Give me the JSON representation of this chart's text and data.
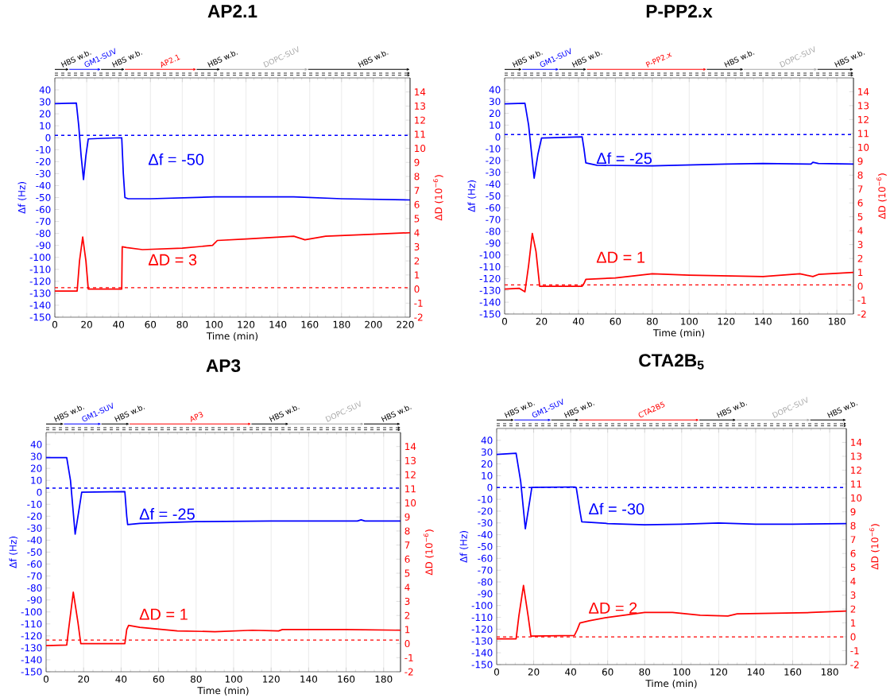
{
  "chart_data": [
    {
      "type": "line",
      "title": "AP2.1",
      "xlabel": "Time (min)",
      "ylabel": "Δf (Hz)",
      "y2label": "ΔD (10$^{−6}$)",
      "series": [
        {
          "color": "#0000ff",
          "x": [
            0,
            13.5,
            15,
            16.5,
            18,
            19.5,
            21,
            30,
            42,
            43,
            44,
            46,
            60,
            100,
            150,
            180,
            223
          ],
          "values": [
            28.5,
            29,
            10,
            -15,
            -35,
            -15,
            -1,
            -0.5,
            0,
            -30,
            -50,
            -51,
            -51,
            -49.5,
            -49.5,
            -51,
            -52
          ]
        },
        {
          "color": "#ff0000",
          "axis": "y2",
          "x": [
            0,
            14,
            15.5,
            17.5,
            19.5,
            21,
            42,
            42.3,
            45,
            55,
            80,
            99,
            102,
            120,
            150,
            157,
            170,
            200,
            223
          ],
          "values": [
            -0.15,
            -0.15,
            2,
            3.7,
            2,
            0,
            0,
            3,
            2.95,
            2.8,
            2.9,
            3.1,
            3.45,
            3.55,
            3.75,
            3.5,
            3.75,
            3.9,
            4.0
          ]
        }
      ],
      "xlim": [
        0,
        223
      ],
      "xticks": [
        0,
        20,
        40,
        60,
        80,
        100,
        120,
        140,
        160,
        180,
        200,
        220
      ],
      "ylim": [
        -150,
        50
      ],
      "yticks": [
        -150,
        -140,
        -130,
        -120,
        -110,
        -100,
        -90,
        -80,
        -70,
        -60,
        -50,
        -40,
        -30,
        -20,
        -10,
        0,
        10,
        20,
        30,
        40
      ],
      "y2lim": [
        -2,
        15
      ],
      "y2ticks": [
        -2,
        -1,
        0,
        1,
        2,
        3,
        4,
        5,
        6,
        7,
        8,
        9,
        10,
        11,
        12,
        13,
        14
      ],
      "grid": "x",
      "marker": "none",
      "line_style": "solid",
      "ref_lines": [
        {
          "axis": "y",
          "value": 2,
          "color": "#0000ff",
          "line_style": "dashed"
        },
        {
          "axis": "y2",
          "value": 0.1,
          "color": "#ff0000",
          "line_style": "dashed"
        }
      ],
      "annotations": [
        "Δf = -50",
        "ΔD = 3",
        "HBS w.b.",
        "GM1-SUV",
        "HBS w.b.",
        "AP2.1",
        "HBS w.b.",
        "DOPC-SUV",
        "HBS w.b."
      ]
    },
    {
      "type": "line",
      "title": "P-PP2.x",
      "xlabel": "Time (min)",
      "ylabel": "Δf (Hz)",
      "y2label": "ΔD (10$^{−6}$)",
      "series": [
        {
          "color": "#0000ff",
          "x": [
            0,
            11,
            13,
            16,
            18,
            20,
            42,
            43,
            44,
            50,
            80,
            120,
            140,
            166,
            167,
            170,
            189
          ],
          "values": [
            28,
            28.5,
            10,
            -35,
            -15,
            -1,
            0,
            -10,
            -22,
            -24,
            -24.5,
            -23,
            -22.5,
            -23,
            -21.5,
            -22.5,
            -23
          ]
        },
        {
          "color": "#ff0000",
          "axis": "y2",
          "x": [
            0,
            8,
            11,
            13,
            15,
            17,
            19,
            42,
            43,
            44,
            60,
            80,
            100,
            140,
            160,
            167,
            170,
            189
          ],
          "values": [
            -0.2,
            -0.15,
            -0.4,
            1.5,
            3.8,
            2.5,
            0,
            0,
            0.2,
            0.5,
            0.6,
            0.9,
            0.8,
            0.7,
            0.9,
            0.7,
            0.85,
            1.0
          ]
        }
      ],
      "xlim": [
        0,
        189
      ],
      "xticks": [
        0,
        20,
        40,
        60,
        80,
        100,
        120,
        140,
        160,
        180
      ],
      "ylim": [
        -150,
        50
      ],
      "yticks": [
        -150,
        -140,
        -130,
        -120,
        -110,
        -100,
        -90,
        -80,
        -70,
        -60,
        -50,
        -40,
        -30,
        -20,
        -10,
        0,
        10,
        20,
        30,
        40
      ],
      "y2lim": [
        -2,
        15
      ],
      "y2ticks": [
        -2,
        -1,
        0,
        1,
        2,
        3,
        4,
        5,
        6,
        7,
        8,
        9,
        10,
        11,
        12,
        13,
        14
      ],
      "grid": "x",
      "marker": "none",
      "line_style": "solid",
      "ref_lines": [
        {
          "axis": "y",
          "value": 2,
          "color": "#0000ff",
          "line_style": "dashed"
        },
        {
          "axis": "y2",
          "value": 0.1,
          "color": "#ff0000",
          "line_style": "dashed"
        }
      ],
      "annotations": [
        "Δf = -25",
        "ΔD = 1",
        "HBS w.b.",
        "GM1-SUV",
        "HBS w.b.",
        "P-PP2.x",
        "HBS w.b.",
        "DOPC-SUV",
        "HBS w.b."
      ]
    },
    {
      "type": "line",
      "title": "AP3",
      "xlabel": "Time (min)",
      "ylabel": "Δf (Hz)",
      "y2label": "ΔD (10$^{−6}$)",
      "series": [
        {
          "color": "#0000ff",
          "x": [
            0,
            11,
            13,
            15.5,
            18,
            19,
            42,
            43,
            43.5,
            50,
            60,
            80,
            120,
            166,
            168,
            170,
            189
          ],
          "values": [
            29,
            29,
            10,
            -35,
            -10,
            0,
            0.5,
            -20,
            -27,
            -26,
            -25.5,
            -24.5,
            -24,
            -24,
            -23,
            -24,
            -24
          ]
        },
        {
          "color": "#ff0000",
          "axis": "y2",
          "x": [
            0,
            11,
            12,
            14.5,
            17,
            18.5,
            42,
            43,
            44,
            50,
            70,
            90,
            110,
            124,
            126,
            160,
            189
          ],
          "values": [
            -0.15,
            -0.1,
            1,
            3.65,
            1.5,
            0,
            0,
            1,
            1.3,
            1.15,
            0.9,
            0.85,
            0.95,
            0.9,
            1.0,
            1.0,
            0.95
          ]
        }
      ],
      "xlim": [
        0,
        189
      ],
      "xticks": [
        0,
        20,
        40,
        60,
        80,
        100,
        120,
        140,
        160,
        180
      ],
      "ylim": [
        -150,
        50
      ],
      "yticks": [
        -150,
        -140,
        -130,
        -120,
        -110,
        -100,
        -90,
        -80,
        -70,
        -60,
        -50,
        -40,
        -30,
        -20,
        -10,
        0,
        10,
        20,
        30,
        40
      ],
      "y2lim": [
        -2,
        15
      ],
      "y2ticks": [
        -2,
        -1,
        0,
        1,
        2,
        3,
        4,
        5,
        6,
        7,
        8,
        9,
        10,
        11,
        12,
        13,
        14
      ],
      "grid": "x",
      "marker": "none",
      "line_style": "solid",
      "ref_lines": [
        {
          "axis": "y",
          "value": 3.5,
          "color": "#0000ff",
          "line_style": "dashed"
        },
        {
          "axis": "y2",
          "value": 0.25,
          "color": "#ff0000",
          "line_style": "dashed"
        }
      ],
      "annotations": [
        "Δf = -25",
        "ΔD = 1",
        "HBS w.b.",
        "GM1-SUV",
        "HBS w.b.",
        "AP3",
        "HBS w.b.",
        "DOPC-SUV",
        "HBS w.b."
      ]
    },
    {
      "type": "line",
      "title": "CTA2B$_{5}$",
      "xlabel": "Time (min)",
      "ylabel": "Δf (Hz)",
      "y2label": "ΔD (10$^{−6}$)",
      "series": [
        {
          "color": "#0000ff",
          "x": [
            0,
            10.5,
            13,
            15.5,
            18,
            19,
            42,
            43,
            45,
            46,
            60,
            80,
            100,
            120,
            140,
            160,
            189
          ],
          "values": [
            28,
            29,
            5,
            -35,
            -10,
            0,
            0.5,
            0,
            -20,
            -29,
            -30.5,
            -31.5,
            -31,
            -30,
            -31,
            -31,
            -30.5
          ]
        },
        {
          "color": "#ff0000",
          "axis": "y2",
          "x": [
            0,
            10.5,
            12,
            14.5,
            17,
            18.5,
            42,
            43.5,
            45,
            50,
            60,
            80,
            95,
            110,
            125,
            130,
            150,
            170,
            189
          ],
          "values": [
            -0.15,
            -0.15,
            1.5,
            3.7,
            1.5,
            0.05,
            0.1,
            0.5,
            1.0,
            1.15,
            1.4,
            1.75,
            1.75,
            1.55,
            1.5,
            1.65,
            1.7,
            1.75,
            1.85
          ]
        }
      ],
      "xlim": [
        0,
        189
      ],
      "xticks": [
        0,
        20,
        40,
        60,
        80,
        100,
        120,
        140,
        160,
        180
      ],
      "ylim": [
        -150,
        50
      ],
      "yticks": [
        -150,
        -140,
        -130,
        -120,
        -110,
        -100,
        -90,
        -80,
        -70,
        -60,
        -50,
        -40,
        -30,
        -20,
        -10,
        0,
        10,
        20,
        30,
        40
      ],
      "y2lim": [
        -2,
        15
      ],
      "y2ticks": [
        -2,
        -1,
        0,
        1,
        2,
        3,
        4,
        5,
        6,
        7,
        8,
        9,
        10,
        11,
        12,
        13,
        14
      ],
      "grid": "x",
      "marker": "none",
      "line_style": "solid",
      "ref_lines": [
        {
          "axis": "y",
          "value": 0,
          "color": "#0000ff",
          "line_style": "dashed"
        },
        {
          "axis": "y2",
          "value": 0,
          "color": "#ff0000",
          "line_style": "dashed"
        }
      ],
      "annotations": [
        "Δf = -30",
        "ΔD = 2",
        "HBS w.b.",
        "GM1-SUV",
        "HBS w.b.",
        "CTA2B5",
        "HBS w.b.",
        "DOPC-SUV",
        "HBS w.b."
      ]
    }
  ]
}
